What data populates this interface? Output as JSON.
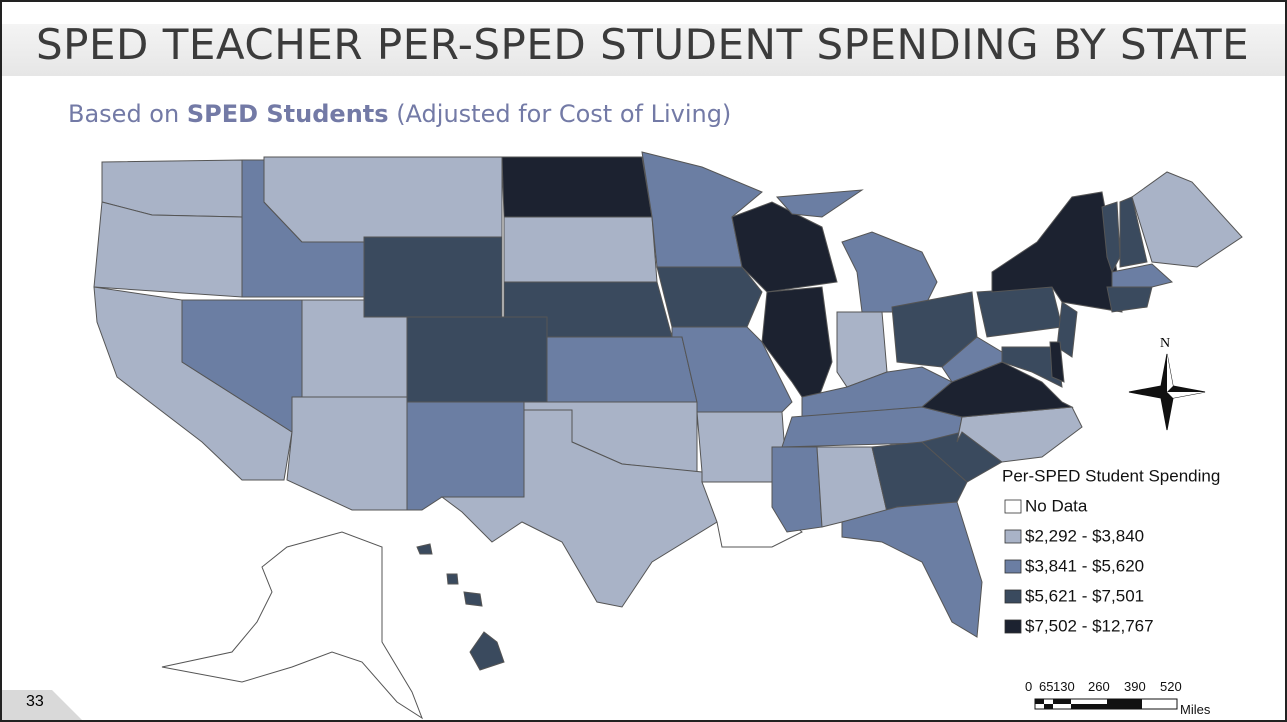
{
  "title": "SPED TEACHER PER-SPED STUDENT SPENDING BY STATE",
  "subtitle": {
    "prefix": "Based on",
    "bold": "SPED Students",
    "suffix": "(Adjusted for Cost of Living)"
  },
  "legend": {
    "title": "Per-SPED Student Spending",
    "items": [
      {
        "label": "No Data",
        "color": "#ffffff"
      },
      {
        "label": "$2,292 - $3,840",
        "color": "#a9b3c7"
      },
      {
        "label": "$3,841 - $5,620",
        "color": "#6b7ea3"
      },
      {
        "label": "$5,621 - $7,501",
        "color": "#3a4a5e"
      },
      {
        "label": "$7,502 - $12,767",
        "color": "#1c2230"
      }
    ]
  },
  "compass": "N",
  "scale_bar": {
    "labels": [
      "0",
      "65",
      "130",
      "260",
      "390",
      "520"
    ],
    "unit": "Miles"
  },
  "page_number": "33"
}
